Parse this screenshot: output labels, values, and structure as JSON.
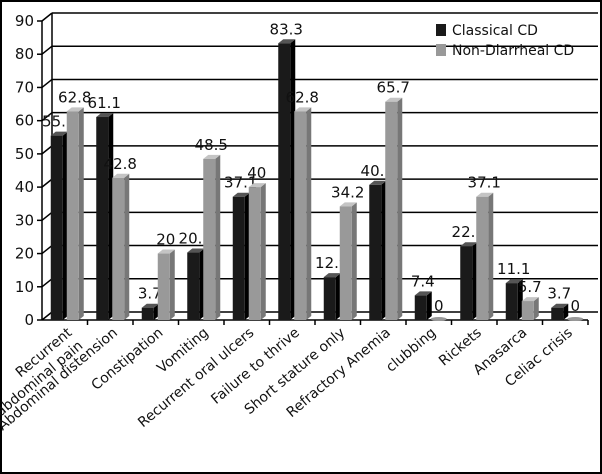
{
  "chart_data": {
    "type": "bar",
    "categories": [
      "Recurrent abdominal pain",
      "Abdominal distension",
      "Constipation",
      "Vomiting",
      "Recurrent oral ulcers",
      "Failure to thrive",
      "Short stature only",
      "Refractory Anemia",
      "clubbing",
      "Rickets",
      "Anasarca",
      "Celiac crisis"
    ],
    "series": [
      {
        "name": "Classical CD",
        "values": [
          55.5,
          61.1,
          3.7,
          20.3,
          37.1,
          83.3,
          12.9,
          40.7,
          7.4,
          22.2,
          11.1,
          3.7
        ],
        "color": "#1a1a1a"
      },
      {
        "name": "Non-Diarrheal CD",
        "values": [
          62.8,
          42.8,
          20,
          48.5,
          40,
          62.8,
          34.2,
          65.7,
          0,
          37.1,
          5.7,
          0
        ],
        "color": "#999999"
      }
    ],
    "data_labels": [
      [
        "55.5",
        "61.1",
        "3.7",
        "20.3",
        "37.1",
        "83.3",
        "12.9",
        "40.7",
        "7.4",
        "22.2",
        "11.1",
        "3.7"
      ],
      [
        "62.8",
        "42.8",
        "20",
        "48.5",
        "40",
        "62.8",
        "34.2",
        "65.7",
        "0",
        "37.1",
        "5.7",
        "0"
      ]
    ],
    "y_ticks": [
      "0",
      "10",
      "20",
      "30",
      "40",
      "50",
      "60",
      "70",
      "80",
      "90"
    ],
    "ylim": [
      0,
      90
    ],
    "grid": true,
    "legend_position": "top-right",
    "title": "",
    "xlabel": "",
    "ylabel": ""
  }
}
